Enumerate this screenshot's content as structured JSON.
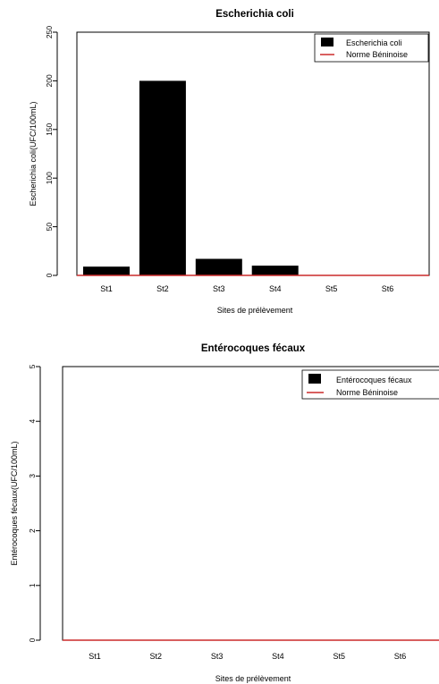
{
  "colors": {
    "bar": "#000000",
    "norm_line": "#cc2a2a",
    "axis": "#000000",
    "background": "#ffffff"
  },
  "chart_data": [
    {
      "type": "bar",
      "title": "Escherichia coli",
      "xlabel": "Sites de prélèvement",
      "ylabel": "Escherichia coli(UFC/100mL)",
      "categories": [
        "St1",
        "St2",
        "St3",
        "St4",
        "St5",
        "St6"
      ],
      "series": [
        {
          "name": "Escherichia coli",
          "values": [
            9,
            200,
            17,
            10,
            0,
            0
          ]
        }
      ],
      "reference_line": {
        "name": "Norme Béninoise",
        "value": 0
      },
      "ylim": [
        0,
        250
      ],
      "yticks": [
        0,
        50,
        100,
        150,
        200,
        250
      ],
      "legend": "top-right",
      "grid": false
    },
    {
      "type": "bar",
      "title": "Entérocoques fécaux",
      "xlabel": "Sites de prélèvement",
      "ylabel": "Entérocoques fécaux(UFC/100mL)",
      "categories": [
        "St1",
        "St2",
        "St3",
        "St4",
        "St5",
        "St6"
      ],
      "series": [
        {
          "name": "Entérocoques fécaux",
          "values": [
            0,
            0,
            0,
            0,
            0,
            0
          ]
        }
      ],
      "reference_line": {
        "name": "Norme Béninoise",
        "value": 0
      },
      "ylim": [
        0,
        5
      ],
      "yticks": [
        0,
        1,
        2,
        3,
        4,
        5
      ],
      "legend": "top-right",
      "grid": false
    }
  ]
}
